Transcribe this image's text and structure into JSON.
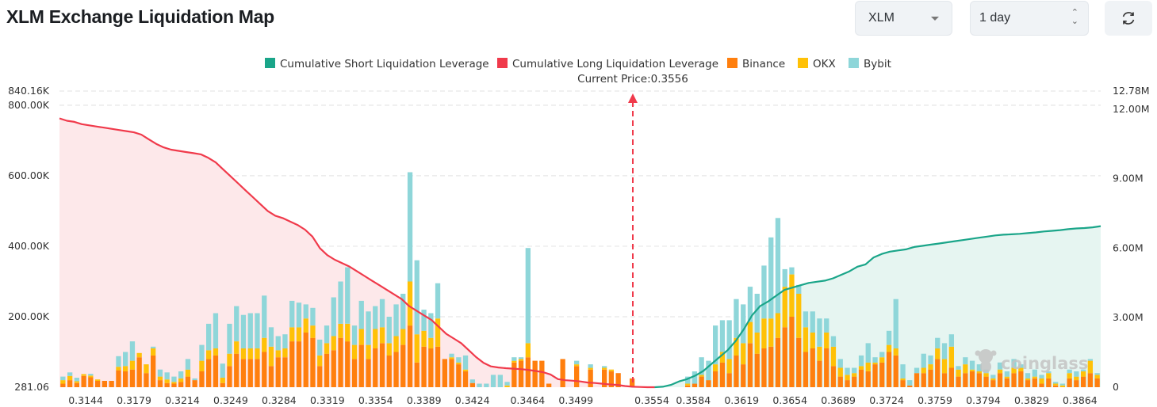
{
  "header": {
    "title": "XLM Exchange Liquidation Map",
    "coin_select": "XLM",
    "range_select": "1 day",
    "refresh_icon": "refresh-icon"
  },
  "colors": {
    "short": "#1aa589",
    "long": "#f03a4b",
    "binance": "#ff7f0e",
    "okx": "#ffc107",
    "bybit": "#8ed6d9",
    "long_fill": "#fde8ea",
    "short_fill": "#e6f5f1"
  },
  "watermark": "coinglass",
  "chart_data": {
    "type": "bar",
    "title": "XLM Exchange Liquidation Map",
    "legend": [
      "Cumulative Short Liquidation Leverage",
      "Cumulative Long Liquidation Leverage",
      "Binance",
      "OKX",
      "Bybit"
    ],
    "legend_position": "top",
    "current_price_label": "Current Price:0.3556",
    "current_price": 0.3556,
    "left_axis": {
      "ticks": [
        "281.06",
        "200.00K",
        "400.00K",
        "600.00K",
        "800.00K",
        "840.16K"
      ],
      "range": [
        281.06,
        840160
      ]
    },
    "right_axis": {
      "ticks": [
        "0",
        "3.00M",
        "6.00M",
        "9.00M",
        "12.00M",
        "12.78M"
      ],
      "range": [
        0,
        12780000
      ]
    },
    "x_ticks": [
      "0.3144",
      "0.3179",
      "0.3214",
      "0.3249",
      "0.3284",
      "0.3319",
      "0.3354",
      "0.3389",
      "0.3424",
      "0.3464",
      "0.3499",
      "0.3554",
      "0.3584",
      "0.3619",
      "0.3654",
      "0.3689",
      "0.3724",
      "0.3759",
      "0.3794",
      "0.3829",
      "0.3864"
    ],
    "x_range": [
      0.3125,
      0.3879
    ],
    "grid": true,
    "bar_step": 0.0005,
    "bar_start": 0.3125,
    "series_units": "K",
    "binance": [
      10,
      20,
      12,
      32,
      28,
      18,
      18,
      18,
      48,
      45,
      50,
      85,
      40,
      90,
      20,
      12,
      10,
      15,
      30,
      20,
      45,
      80,
      90,
      12,
      60,
      95,
      80,
      80,
      80,
      100,
      60,
      85,
      85,
      130,
      130,
      155,
      140,
      60,
      95,
      105,
      140,
      130,
      80,
      120,
      80,
      110,
      125,
      90,
      100,
      120,
      175,
      70,
      115,
      110,
      115,
      80,
      80,
      65,
      45,
      12,
      0,
      0,
      0,
      0,
      0,
      70,
      75,
      85,
      75,
      75,
      10,
      0,
      80,
      0,
      60,
      0,
      50,
      0,
      50,
      45,
      40,
      0,
      25,
      0,
      0,
      0,
      0,
      0,
      0,
      0,
      5,
      10,
      30,
      20,
      45,
      70,
      40,
      90,
      65,
      125,
      95,
      110,
      115,
      140,
      170,
      200,
      140,
      100,
      110,
      75,
      110,
      60,
      30,
      20,
      30,
      50,
      45,
      65,
      70,
      100,
      90,
      20,
      5,
      40,
      40,
      50,
      80,
      40,
      55,
      30,
      40,
      45,
      40,
      30,
      20,
      40,
      25,
      40,
      45,
      20,
      25,
      10,
      25,
      5,
      0,
      25,
      20,
      30,
      40,
      25
    ],
    "okx": [
      10,
      12,
      5,
      5,
      5,
      4,
      0,
      0,
      10,
      15,
      25,
      12,
      25,
      20,
      10,
      10,
      5,
      10,
      20,
      0,
      30,
      25,
      20,
      15,
      35,
      35,
      30,
      30,
      30,
      40,
      55,
      20,
      25,
      40,
      40,
      40,
      35,
      30,
      30,
      40,
      40,
      50,
      40,
      45,
      40,
      55,
      45,
      35,
      45,
      45,
      125,
      80,
      45,
      30,
      80,
      0,
      5,
      5,
      5,
      0,
      0,
      0,
      0,
      0,
      5,
      5,
      5,
      40,
      0,
      0,
      0,
      0,
      0,
      0,
      5,
      0,
      5,
      0,
      5,
      5,
      0,
      0,
      0,
      0,
      0,
      0,
      0,
      0,
      0,
      0,
      5,
      0,
      5,
      0,
      20,
      30,
      40,
      50,
      60,
      60,
      60,
      85,
      80,
      70,
      115,
      120,
      125,
      70,
      45,
      40,
      45,
      55,
      25,
      15,
      10,
      10,
      25,
      5,
      15,
      20,
      20,
      5,
      0,
      0,
      15,
      15,
      30,
      40,
      60,
      20,
      25,
      5,
      5,
      10,
      5,
      10,
      5,
      15,
      10,
      5,
      5,
      15,
      15,
      5,
      5,
      15,
      10,
      15,
      35,
      10
    ],
    "bybit": [
      10,
      10,
      10,
      0,
      5,
      0,
      0,
      0,
      30,
      40,
      55,
      0,
      0,
      5,
      20,
      20,
      15,
      20,
      30,
      5,
      45,
      75,
      100,
      40,
      85,
      100,
      95,
      100,
      100,
      120,
      55,
      40,
      40,
      75,
      70,
      40,
      50,
      45,
      50,
      110,
      120,
      160,
      55,
      80,
      95,
      65,
      80,
      75,
      90,
      100,
      310,
      210,
      60,
      70,
      100,
      0,
      10,
      15,
      40,
      10,
      10,
      10,
      35,
      35,
      10,
      10,
      5,
      270,
      0,
      0,
      0,
      0,
      0,
      0,
      10,
      0,
      10,
      0,
      5,
      0,
      0,
      0,
      0,
      0,
      0,
      0,
      0,
      0,
      0,
      0,
      20,
      35,
      50,
      55,
      110,
      90,
      110,
      110,
      110,
      100,
      110,
      150,
      230,
      270,
      50,
      20,
      25,
      45,
      60,
      80,
      40,
      30,
      25,
      20,
      15,
      30,
      55,
      15,
      15,
      40,
      140,
      40,
      15,
      15,
      40,
      25,
      30,
      45,
      35,
      10,
      20,
      25,
      20,
      10,
      10,
      20,
      15,
      25,
      10,
      15,
      20,
      10,
      5,
      5,
      5,
      10,
      15,
      5,
      5,
      5
    ]
  },
  "cumulative_long_M": [
    11.6,
    11.5,
    11.45,
    11.35,
    11.3,
    11.25,
    11.2,
    11.15,
    11.1,
    11.05,
    11.0,
    10.9,
    10.7,
    10.5,
    10.35,
    10.25,
    10.2,
    10.15,
    10.1,
    10.05,
    9.9,
    9.7,
    9.4,
    9.1,
    8.8,
    8.5,
    8.2,
    7.9,
    7.6,
    7.4,
    7.3,
    7.15,
    7.0,
    6.8,
    6.5,
    6.0,
    5.7,
    5.5,
    5.35,
    5.2,
    5.0,
    4.8,
    4.6,
    4.4,
    4.2,
    4.0,
    3.8,
    3.5,
    3.3,
    3.1,
    2.9,
    2.6,
    2.3,
    2.1,
    1.9,
    1.6,
    1.3,
    1.05,
    0.9,
    0.85,
    0.82,
    0.8,
    0.78,
    0.75,
    0.7,
    0.65,
    0.55,
    0.35,
    0.3,
    0.28,
    0.25,
    0.2,
    0.18,
    0.15,
    0.12,
    0.1,
    0.05,
    0.02,
    0.01,
    0.0,
    0.0
  ],
  "cumulative_short_M": [
    0.0,
    0.02,
    0.1,
    0.25,
    0.35,
    0.5,
    0.7,
    1.0,
    1.3,
    1.6,
    2.0,
    2.5,
    3.1,
    3.5,
    3.7,
    3.95,
    4.2,
    4.3,
    4.4,
    4.5,
    4.55,
    4.6,
    4.7,
    4.85,
    5.0,
    5.2,
    5.3,
    5.6,
    5.75,
    5.85,
    5.9,
    5.95,
    6.05,
    6.1,
    6.15,
    6.2,
    6.25,
    6.3,
    6.35,
    6.4,
    6.45,
    6.5,
    6.55,
    6.58,
    6.6,
    6.62,
    6.65,
    6.68,
    6.72,
    6.75,
    6.78,
    6.82,
    6.85,
    6.87,
    6.9,
    6.95
  ]
}
